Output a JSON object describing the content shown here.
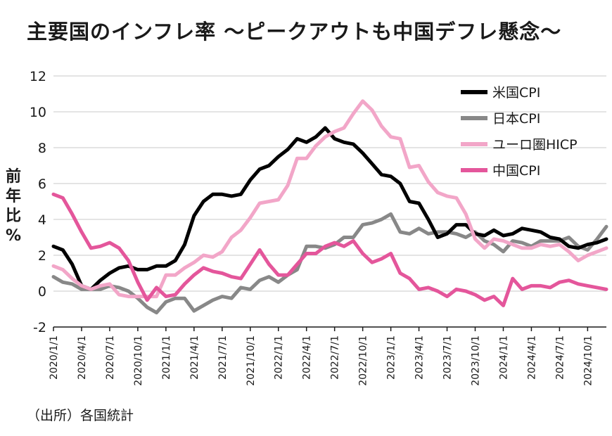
{
  "title": "主要国のインフレ率 ～ピークアウトも中国デフレ懸念～",
  "source": "（出所）各国統計",
  "chart_data": {
    "type": "line",
    "title": "主要国のインフレ率 ～ピークアウトも中国デフレ懸念～",
    "ylabel": "前年比%",
    "ylabel_chars": [
      "前",
      "年",
      "比",
      "%"
    ],
    "xlabel": "",
    "ylim": [
      -2,
      12
    ],
    "yticks": [
      -2,
      0,
      2,
      4,
      6,
      8,
      10,
      12
    ],
    "xtick_labels": [
      "2020/1/1",
      "2020/4/1",
      "2020/7/1",
      "2020/10/1",
      "2021/1/1",
      "2021/4/1",
      "2021/7/1",
      "2021/10/1",
      "2022/1/1",
      "2022/4/1",
      "2022/7/1",
      "2022/10/1",
      "2023/1/1",
      "2023/4/1",
      "2023/7/1",
      "2023/10/1",
      "2024/1/1",
      "2024/4/1",
      "2024/7/1",
      "2024/10/1"
    ],
    "x_months": [
      "2020/1",
      "2020/2",
      "2020/3",
      "2020/4",
      "2020/5",
      "2020/6",
      "2020/7",
      "2020/8",
      "2020/9",
      "2020/10",
      "2020/11",
      "2020/12",
      "2021/1",
      "2021/2",
      "2021/3",
      "2021/4",
      "2021/5",
      "2021/6",
      "2021/7",
      "2021/8",
      "2021/9",
      "2021/10",
      "2021/11",
      "2021/12",
      "2022/1",
      "2022/2",
      "2022/3",
      "2022/4",
      "2022/5",
      "2022/6",
      "2022/7",
      "2022/8",
      "2022/9",
      "2022/10",
      "2022/11",
      "2022/12",
      "2023/1",
      "2023/2",
      "2023/3",
      "2023/4",
      "2023/5",
      "2023/6",
      "2023/7",
      "2023/8",
      "2023/9",
      "2023/10",
      "2023/11",
      "2023/12",
      "2024/1",
      "2024/2",
      "2024/3",
      "2024/4",
      "2024/5",
      "2024/6",
      "2024/7",
      "2024/8",
      "2024/9",
      "2024/10",
      "2024/11",
      "2024/12"
    ],
    "grid": true,
    "legend_position": "top-right",
    "series": [
      {
        "name": "米国CPI",
        "color": "#000000",
        "values": [
          2.5,
          2.3,
          1.5,
          0.3,
          0.1,
          0.6,
          1.0,
          1.3,
          1.4,
          1.2,
          1.2,
          1.4,
          1.4,
          1.7,
          2.6,
          4.2,
          5.0,
          5.4,
          5.4,
          5.3,
          5.4,
          6.2,
          6.8,
          7.0,
          7.5,
          7.9,
          8.5,
          8.3,
          8.6,
          9.1,
          8.5,
          8.3,
          8.2,
          7.7,
          7.1,
          6.5,
          6.4,
          6.0,
          5.0,
          4.9,
          4.0,
          3.0,
          3.2,
          3.7,
          3.7,
          3.2,
          3.1,
          3.4,
          3.1,
          3.2,
          3.5,
          3.4,
          3.3,
          3.0,
          2.9,
          2.5,
          2.4,
          2.6,
          2.7,
          2.9
        ]
      },
      {
        "name": "日本CPI",
        "color": "#888888",
        "values": [
          0.8,
          0.5,
          0.4,
          0.1,
          0.1,
          0.1,
          0.3,
          0.2,
          0.0,
          -0.4,
          -0.9,
          -1.2,
          -0.6,
          -0.4,
          -0.4,
          -1.1,
          -0.8,
          -0.5,
          -0.3,
          -0.4,
          0.2,
          0.1,
          0.6,
          0.8,
          0.5,
          0.9,
          1.2,
          2.5,
          2.5,
          2.4,
          2.6,
          3.0,
          3.0,
          3.7,
          3.8,
          4.0,
          4.3,
          3.3,
          3.2,
          3.5,
          3.2,
          3.3,
          3.3,
          3.2,
          3.0,
          3.3,
          2.8,
          2.6,
          2.2,
          2.8,
          2.7,
          2.5,
          2.8,
          2.8,
          2.8,
          3.0,
          2.5,
          2.3,
          2.9,
          3.6
        ]
      },
      {
        "name": "ユーロ圏HICP",
        "color": "#f2a6c8",
        "values": [
          1.4,
          1.2,
          0.7,
          0.3,
          0.1,
          0.3,
          0.4,
          -0.2,
          -0.3,
          -0.3,
          -0.3,
          -0.3,
          0.9,
          0.9,
          1.3,
          1.6,
          2.0,
          1.9,
          2.2,
          3.0,
          3.4,
          4.1,
          4.9,
          5.0,
          5.1,
          5.9,
          7.4,
          7.4,
          8.1,
          8.6,
          8.9,
          9.1,
          9.9,
          10.6,
          10.1,
          9.2,
          8.6,
          8.5,
          6.9,
          7.0,
          6.1,
          5.5,
          5.3,
          5.2,
          4.3,
          2.9,
          2.4,
          2.9,
          2.8,
          2.6,
          2.4,
          2.4,
          2.6,
          2.5,
          2.6,
          2.2,
          1.7,
          2.0,
          2.2,
          2.4
        ]
      },
      {
        "name": "中国CPI",
        "color": "#e4569b",
        "values": [
          5.4,
          5.2,
          4.3,
          3.3,
          2.4,
          2.5,
          2.7,
          2.4,
          1.7,
          0.5,
          -0.5,
          0.2,
          -0.3,
          -0.2,
          0.4,
          0.9,
          1.3,
          1.1,
          1.0,
          0.8,
          0.7,
          1.5,
          2.3,
          1.5,
          0.9,
          0.9,
          1.5,
          2.1,
          2.1,
          2.5,
          2.7,
          2.5,
          2.8,
          2.1,
          1.6,
          1.8,
          2.1,
          1.0,
          0.7,
          0.1,
          0.2,
          0.0,
          -0.3,
          0.1,
          0.0,
          -0.2,
          -0.5,
          -0.3,
          -0.8,
          0.7,
          0.1,
          0.3,
          0.3,
          0.2,
          0.5,
          0.6,
          0.4,
          0.3,
          0.2,
          0.1
        ]
      }
    ]
  }
}
